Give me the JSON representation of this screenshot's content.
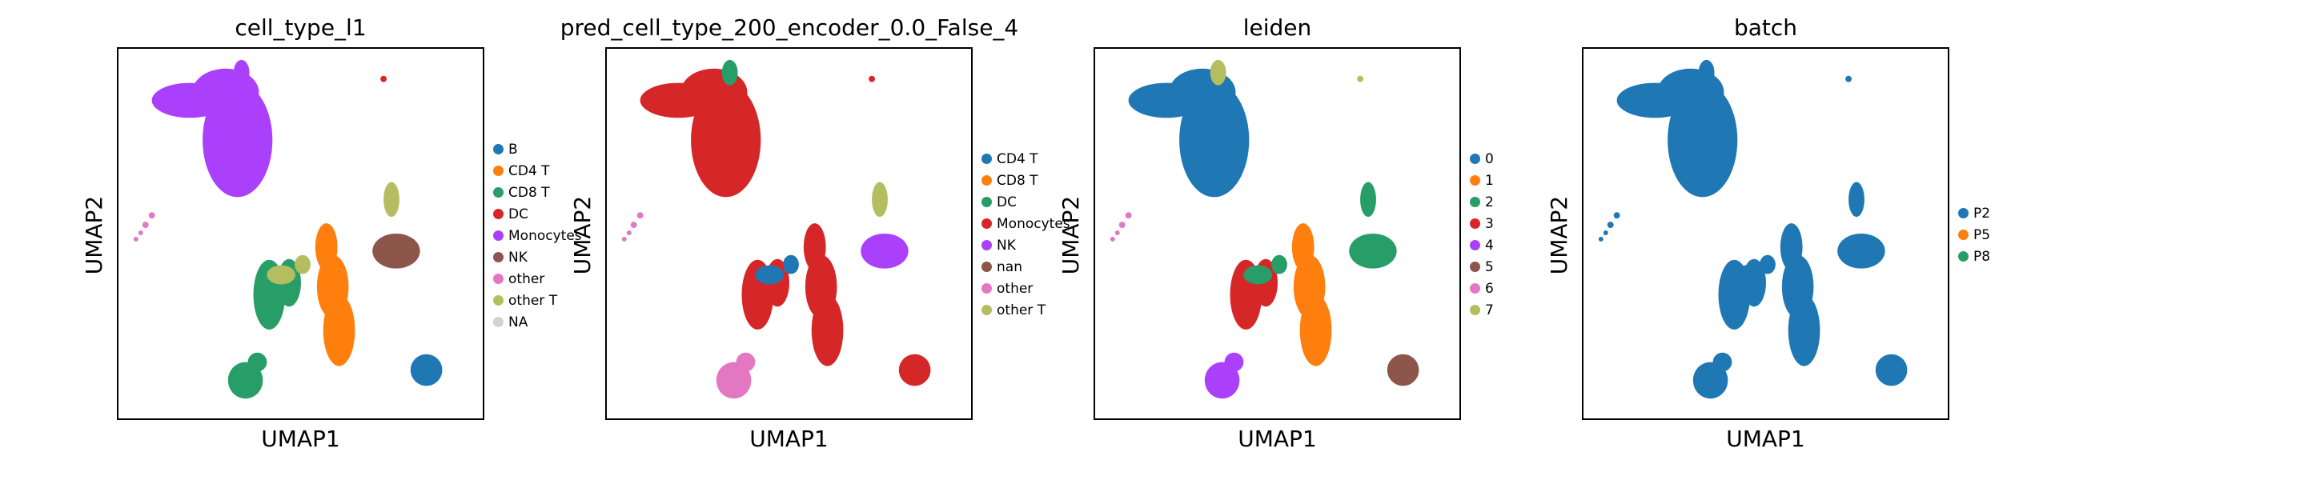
{
  "chart_data": [
    {
      "type": "scatter",
      "title": "cell_type_l1",
      "xlabel": "UMAP1",
      "ylabel": "UMAP2",
      "legend": [
        {
          "label": "B",
          "color": "#1f77b4"
        },
        {
          "label": "CD4 T",
          "color": "#ff7f0e"
        },
        {
          "label": "CD8 T",
          "color": "#279e68"
        },
        {
          "label": "DC",
          "color": "#d62728"
        },
        {
          "label": "Monocytes",
          "color": "#aa40fc"
        },
        {
          "label": "NK",
          "color": "#8c564b"
        },
        {
          "label": "other",
          "color": "#e377c2"
        },
        {
          "label": "other T",
          "color": "#b5bd61"
        },
        {
          "label": "NA",
          "color": "#d3d3d3"
        }
      ],
      "clusters": {
        "mono": "Monocytes",
        "topcap": "Monocytes",
        "dot1": "DC",
        "pdc": "other",
        "cd4": "CD4 T",
        "cd8": "CD8 T",
        "cd8low": "CD8 T",
        "junction": "other T",
        "nkcap": "other T",
        "nk": "NK",
        "b": "B"
      }
    },
    {
      "type": "scatter",
      "title": "pred_cell_type_200_encoder_0.0_False_4",
      "xlabel": "UMAP1",
      "ylabel": "UMAP2",
      "legend": [
        {
          "label": "CD4 T",
          "color": "#1f77b4"
        },
        {
          "label": "CD8 T",
          "color": "#ff7f0e"
        },
        {
          "label": "DC",
          "color": "#279e68"
        },
        {
          "label": "Monocytes",
          "color": "#d62728"
        },
        {
          "label": "NK",
          "color": "#aa40fc"
        },
        {
          "label": "nan",
          "color": "#8c564b"
        },
        {
          "label": "other",
          "color": "#e377c2"
        },
        {
          "label": "other T",
          "color": "#b5bd61"
        }
      ],
      "clusters": {
        "mono": "Monocytes",
        "topcap": "DC",
        "dot1": "Monocytes",
        "pdc": "other",
        "cd4": "Monocytes",
        "cd8": "Monocytes",
        "cd8low": "other",
        "junction": "CD4 T",
        "nkcap": "other T",
        "nk": "NK",
        "b": "Monocytes"
      }
    },
    {
      "type": "scatter",
      "title": "leiden",
      "xlabel": "UMAP1",
      "ylabel": "UMAP2",
      "legend": [
        {
          "label": "0",
          "color": "#1f77b4"
        },
        {
          "label": "1",
          "color": "#ff7f0e"
        },
        {
          "label": "2",
          "color": "#279e68"
        },
        {
          "label": "3",
          "color": "#d62728"
        },
        {
          "label": "4",
          "color": "#aa40fc"
        },
        {
          "label": "5",
          "color": "#8c564b"
        },
        {
          "label": "6",
          "color": "#e377c2"
        },
        {
          "label": "7",
          "color": "#b5bd61"
        }
      ],
      "clusters": {
        "mono": "0",
        "topcap": "7",
        "dot1": "7",
        "pdc": "6",
        "cd4": "1",
        "cd8": "3",
        "cd8low": "4",
        "junction": "2",
        "nkcap": "2",
        "nk": "2",
        "b": "5"
      }
    },
    {
      "type": "scatter",
      "title": "batch",
      "xlabel": "UMAP1",
      "ylabel": "UMAP2",
      "legend": [
        {
          "label": "P2",
          "color": "#1f77b4"
        },
        {
          "label": "P5",
          "color": "#ff7f0e"
        },
        {
          "label": "P8",
          "color": "#279e68"
        }
      ],
      "clusters": {
        "mono": "P2",
        "topcap": "P2",
        "dot1": "P2",
        "pdc": "P2",
        "cd4": "P2",
        "cd8": "P2",
        "cd8low": "P2",
        "junction": "P2",
        "nkcap": "P2",
        "nk": "P2",
        "b": "P2"
      }
    }
  ]
}
